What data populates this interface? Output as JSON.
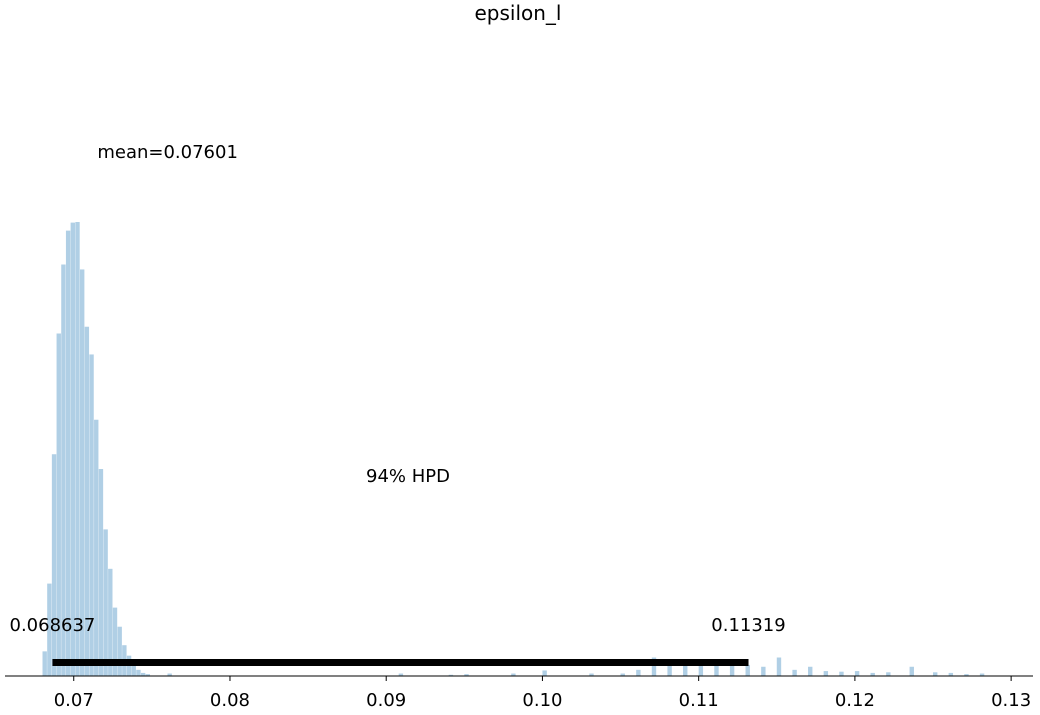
{
  "chart_data": {
    "type": "histogram",
    "title": "epsilon_l",
    "xlabel": "",
    "ylabel": "",
    "xlim": [
      0.0656,
      0.1314
    ],
    "ylim": [
      0,
      1.0
    ],
    "x_ticks": [
      "0.07",
      "0.08",
      "0.09",
      "0.10",
      "0.11",
      "0.12",
      "0.13"
    ],
    "x_tick_values": [
      0.07,
      0.08,
      0.09,
      0.1,
      0.11,
      0.12,
      0.13
    ],
    "y_axis_visible": false,
    "grid": false,
    "bar_color": "#b0cfe5",
    "bin_width": 0.0003,
    "bins": [
      [
        0.068,
        0.04
      ],
      [
        0.0683,
        0.15
      ],
      [
        0.0686,
        0.36
      ],
      [
        0.0689,
        0.556
      ],
      [
        0.0692,
        0.668
      ],
      [
        0.0695,
        0.723
      ],
      [
        0.0698,
        0.736
      ],
      [
        0.0701,
        0.737
      ],
      [
        0.0704,
        0.66
      ],
      [
        0.0707,
        0.567
      ],
      [
        0.071,
        0.522
      ],
      [
        0.0713,
        0.416
      ],
      [
        0.0716,
        0.336
      ],
      [
        0.0719,
        0.238
      ],
      [
        0.0722,
        0.174
      ],
      [
        0.0725,
        0.111
      ],
      [
        0.0728,
        0.08
      ],
      [
        0.0731,
        0.05
      ],
      [
        0.0734,
        0.033
      ],
      [
        0.0737,
        0.02
      ],
      [
        0.074,
        0.01
      ],
      [
        0.0743,
        0.005
      ],
      [
        0.0746,
        0.003
      ],
      [
        0.076,
        0.004
      ],
      [
        0.0908,
        0.004
      ],
      [
        0.094,
        0.002
      ],
      [
        0.095,
        0.003
      ],
      [
        0.098,
        0.004
      ],
      [
        0.1,
        0.009
      ],
      [
        0.103,
        0.004
      ],
      [
        0.105,
        0.004
      ],
      [
        0.106,
        0.01
      ],
      [
        0.107,
        0.03
      ],
      [
        0.108,
        0.02
      ],
      [
        0.109,
        0.025
      ],
      [
        0.11,
        0.02
      ],
      [
        0.111,
        0.025
      ],
      [
        0.112,
        0.02
      ],
      [
        0.113,
        0.018
      ],
      [
        0.114,
        0.015
      ],
      [
        0.115,
        0.03
      ],
      [
        0.116,
        0.01
      ],
      [
        0.117,
        0.015
      ],
      [
        0.118,
        0.008
      ],
      [
        0.119,
        0.007
      ],
      [
        0.12,
        0.008
      ],
      [
        0.121,
        0.005
      ],
      [
        0.122,
        0.006
      ],
      [
        0.1235,
        0.015
      ],
      [
        0.125,
        0.006
      ],
      [
        0.126,
        0.005
      ],
      [
        0.127,
        0.003
      ],
      [
        0.128,
        0.004
      ]
    ],
    "mean": 0.07601,
    "mean_label": "mean=0.07601",
    "hpd": {
      "label": "94% HPD",
      "lower": 0.068637,
      "upper": 0.11319,
      "lower_label": "0.068637",
      "upper_label": "0.11319",
      "bar_color": "#000000"
    }
  }
}
